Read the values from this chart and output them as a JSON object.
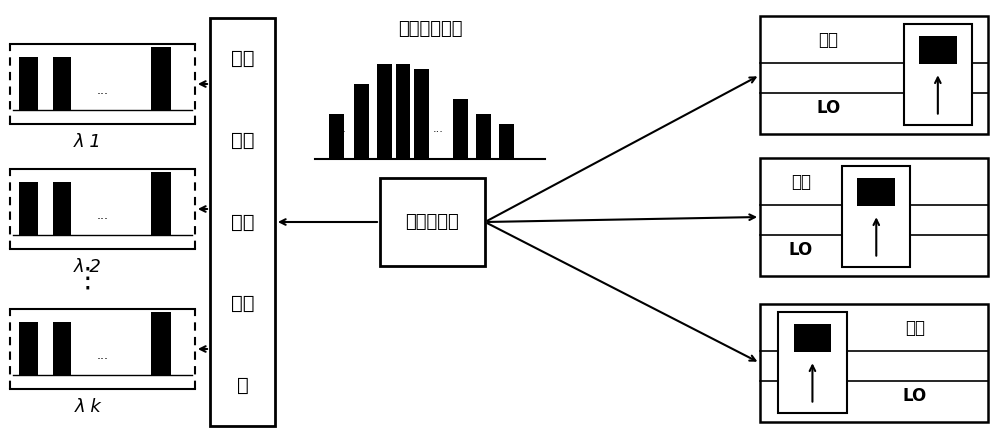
{
  "bg_color": "#ffffff",
  "fig_width": 10.0,
  "fig_height": 4.44,
  "wdm_lines": [
    "波分",
    "复用",
    "与解",
    "复用",
    "器"
  ],
  "spectrum_title": "上行信号频谱",
  "power_text": "功率分配器",
  "lambda_labels": [
    "λ 1",
    "λ 2",
    "λ k"
  ],
  "signal_label": "信号",
  "lo_label": "LO",
  "dots_v": "⋮",
  "dots_h": "..."
}
